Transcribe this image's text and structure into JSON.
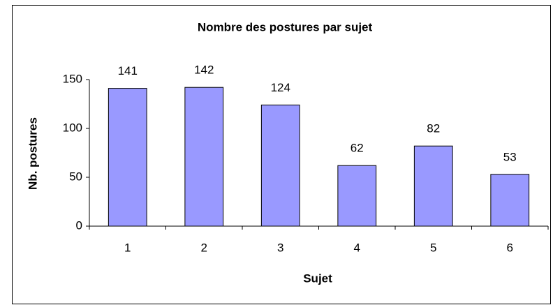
{
  "chart_data": {
    "type": "bar",
    "title": "Nombre des  postures par sujet",
    "xlabel": "Sujet",
    "ylabel": "Nb. postures",
    "categories": [
      "1",
      "2",
      "3",
      "4",
      "5",
      "6"
    ],
    "values": [
      141,
      142,
      124,
      62,
      82,
      53
    ],
    "color": "#9999ff",
    "ylim": [
      0,
      150
    ],
    "yticks": [
      0,
      50,
      100,
      150
    ],
    "grid": false
  }
}
